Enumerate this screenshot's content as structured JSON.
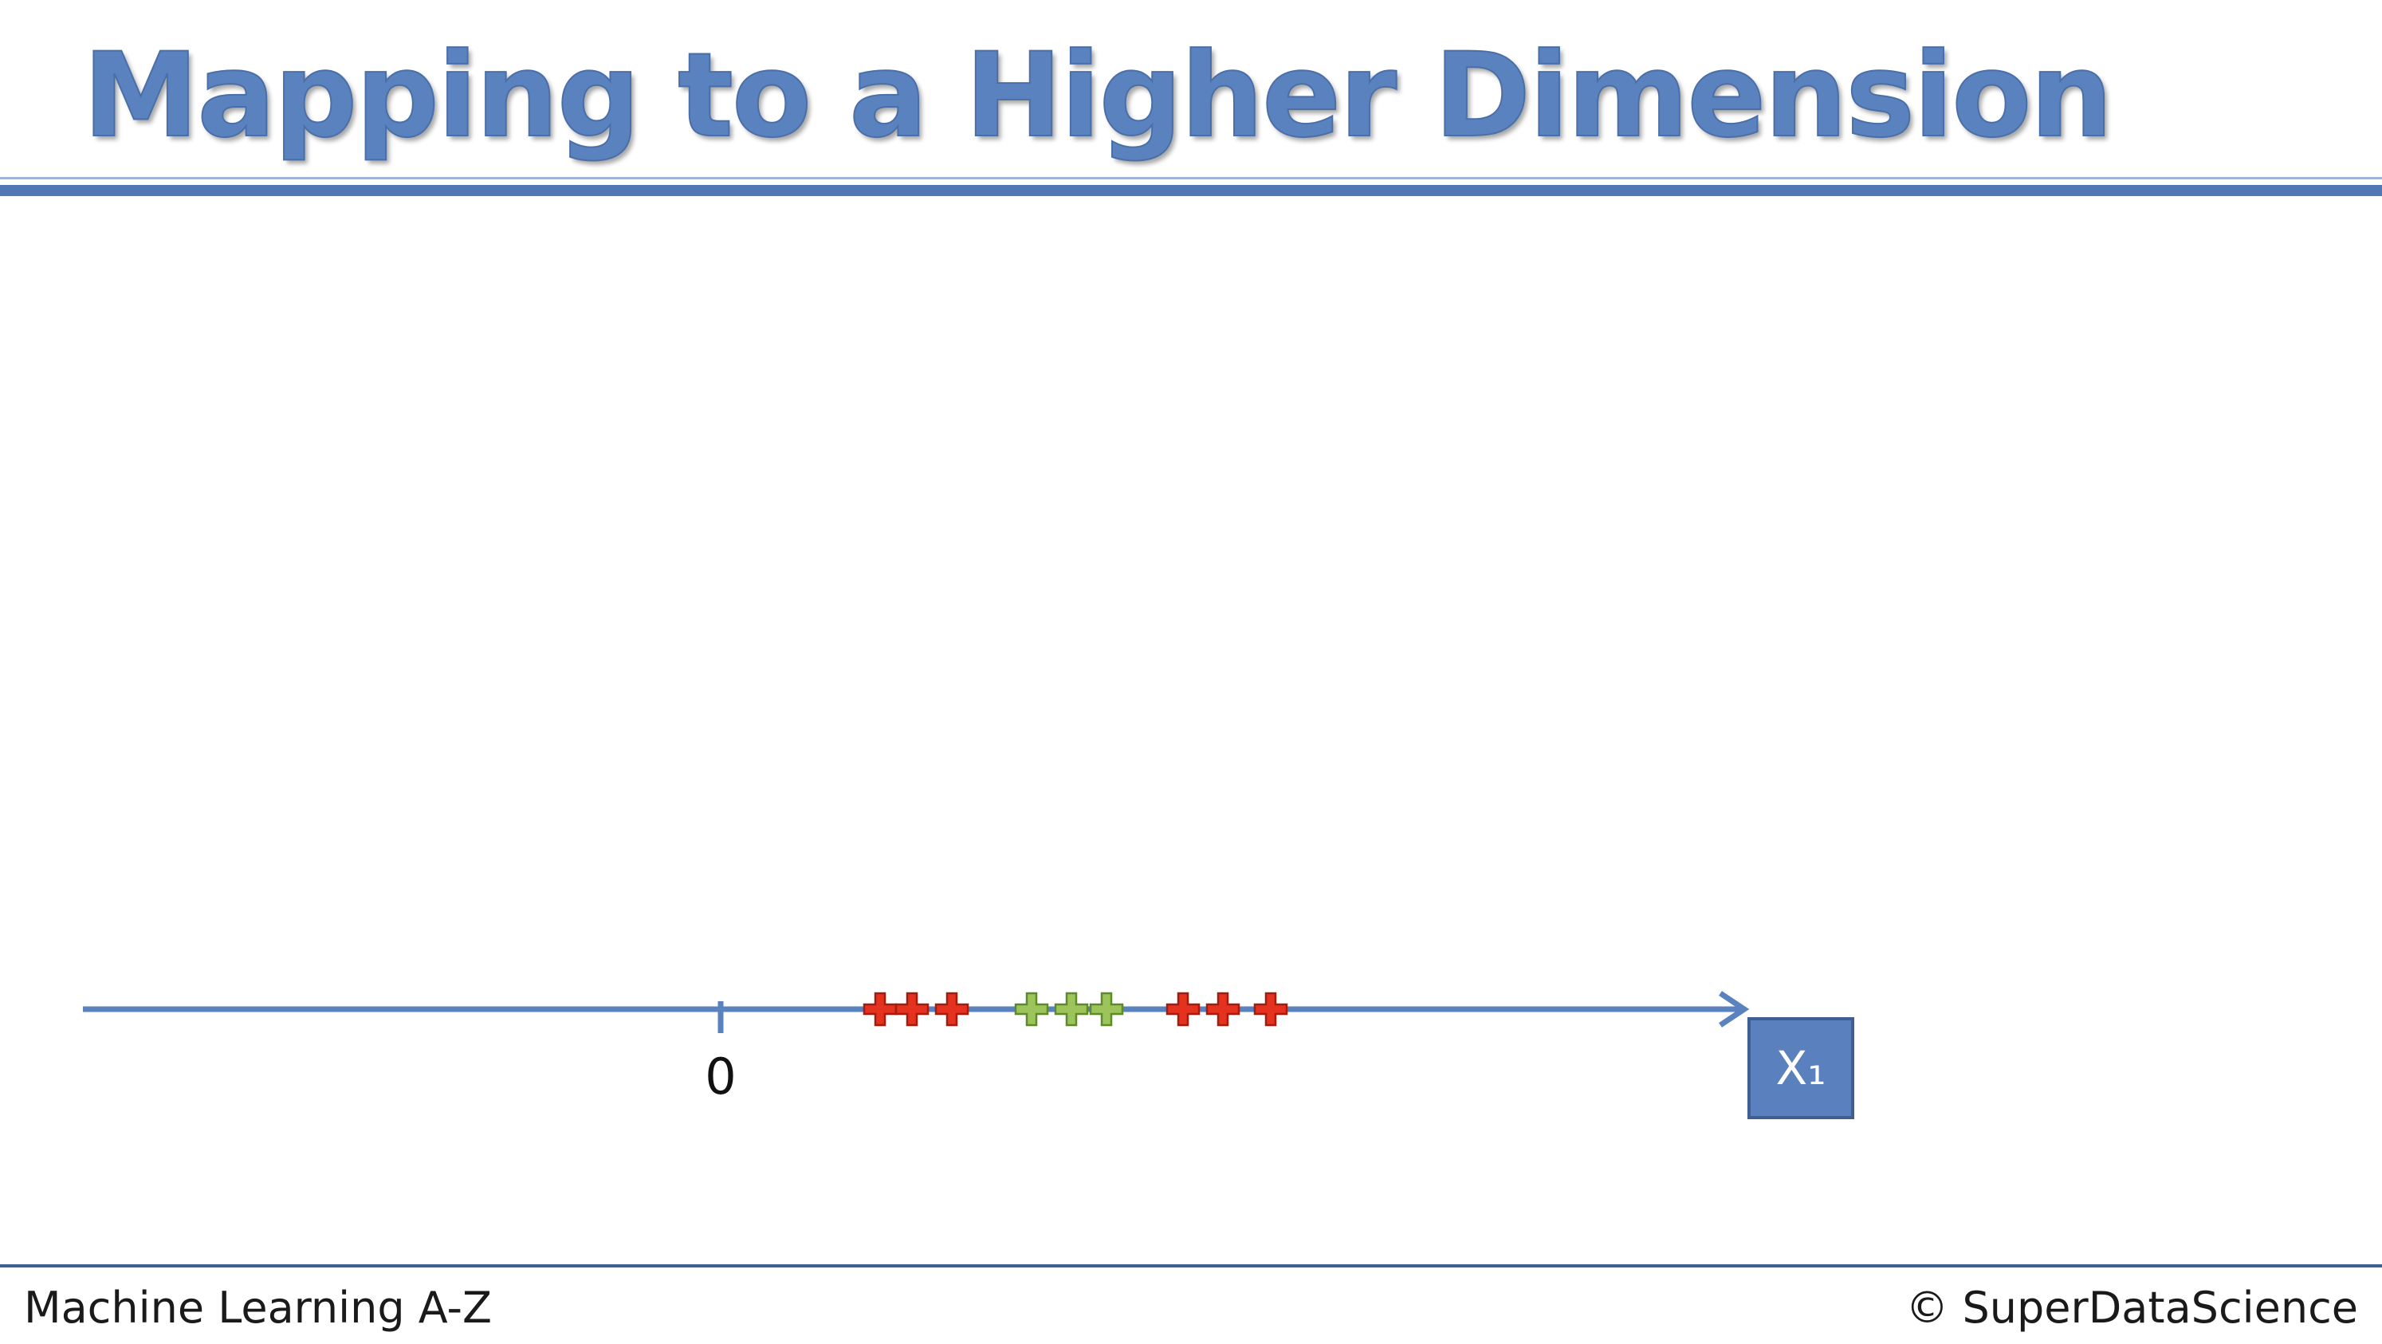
{
  "slide": {
    "title": "Mapping to a Higher Dimension",
    "footer_left": "Machine Learning A-Z",
    "footer_right": "© SuperDataScience"
  },
  "diagram": {
    "axis_label": "X₁",
    "origin_label": "0",
    "colors": {
      "axis": "#5a82bf",
      "class_red": "#e5321f",
      "class_red_stroke": "#a31c10",
      "class_green": "#9cc45a",
      "class_green_stroke": "#5f8a2a"
    },
    "points": [
      {
        "x": 1.0,
        "class": "red"
      },
      {
        "x": 1.2,
        "class": "red"
      },
      {
        "x": 1.45,
        "class": "red"
      },
      {
        "x": 1.95,
        "class": "green"
      },
      {
        "x": 2.2,
        "class": "green"
      },
      {
        "x": 2.42,
        "class": "green"
      },
      {
        "x": 2.9,
        "class": "red"
      },
      {
        "x": 3.15,
        "class": "red"
      },
      {
        "x": 3.45,
        "class": "red"
      }
    ]
  }
}
